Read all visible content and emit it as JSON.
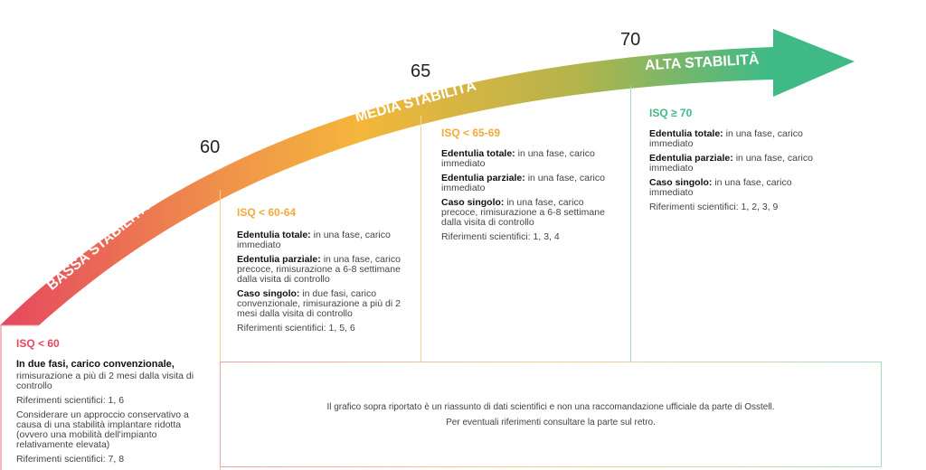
{
  "scale": {
    "markers": [
      "60",
      "65",
      "70"
    ],
    "bands": [
      "BASSA STABILITÀ",
      "MEDIA STABILITÀ",
      "ALTA STABILITÀ"
    ],
    "colors": {
      "low": "#e5475f",
      "mid": "#f4b63b",
      "high": "#3fba87"
    }
  },
  "columns": [
    {
      "title": "ISQ < 60",
      "items": [
        {
          "bold": "In due fasi, carico convenzionale,",
          "text": ""
        },
        {
          "bold": "",
          "text": "rimisurazione a più di 2 mesi dalla visita di controllo"
        },
        {
          "bold": "",
          "text": "Riferimenti scientifici: 1, 6"
        },
        {
          "bold": "",
          "text": "Considerare un approccio conservativo a causa di una stabilità implantare ridotta (ovvero una mobilità dell'impianto relativamente elevata)"
        },
        {
          "bold": "",
          "text": "Riferimenti scientifici: 7, 8"
        }
      ]
    },
    {
      "title": "ISQ < 60-64",
      "items": [
        {
          "bold": "Edentulia totale:",
          "text": " in una fase, carico immediato"
        },
        {
          "bold": "Edentulia parziale:",
          "text": " in una fase, carico precoce, rimisurazione a 6-8 settimane dalla visita di controllo"
        },
        {
          "bold": "Caso singolo:",
          "text": " in due fasi, carico convenzionale, rimisurazione a più di 2 mesi dalla visita di controllo"
        },
        {
          "bold": "",
          "text": "Riferimenti scientifici: 1, 5, 6"
        }
      ]
    },
    {
      "title": "ISQ < 65-69",
      "items": [
        {
          "bold": "Edentulia totale:",
          "text": " in una fase, carico immediato"
        },
        {
          "bold": "Edentulia parziale:",
          "text": " in una fase, carico immediato"
        },
        {
          "bold": "Caso singolo:",
          "text": " in una fase, carico precoce, rimisurazione a 6-8 settimane dalla visita di controllo"
        },
        {
          "bold": "",
          "text": "Riferimenti scientifici: 1, 3, 4"
        }
      ]
    },
    {
      "title": "ISQ ≥ 70",
      "items": [
        {
          "bold": "Edentulia totale:",
          "text": " in una fase, carico immediato"
        },
        {
          "bold": "Edentulia parziale:",
          "text": " in una fase, carico immediato"
        },
        {
          "bold": "Caso singolo:",
          "text": " in una fase, carico immediato"
        },
        {
          "bold": "",
          "text": "Riferimenti scientifici: 1, 2, 3, 9"
        }
      ]
    }
  ],
  "note": {
    "line1": "Il grafico sopra riportato è un riassunto di dati scientifici e non una raccomandazione ufficiale da parte di Osstell.",
    "line2": "Per eventuali riferimenti consultare la parte sul retro."
  }
}
